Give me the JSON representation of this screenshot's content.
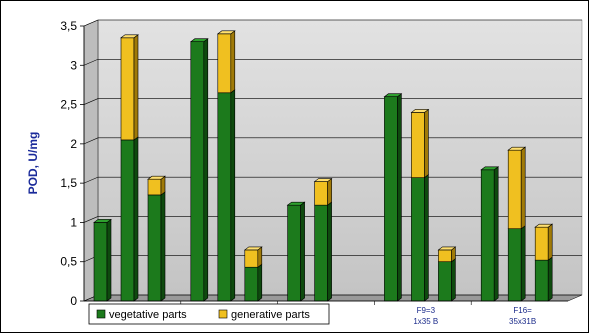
{
  "chart_data": {
    "type": "bar",
    "stacked": true,
    "three_d": true,
    "ylabel": "POD, U/mg",
    "ylim": [
      0,
      3.5
    ],
    "yticks": [
      "0",
      "0,5",
      "1",
      "1,5",
      "2",
      "2,5",
      "3",
      "3,5"
    ],
    "ytick_values": [
      0,
      0.5,
      1,
      1.5,
      2,
      2.5,
      3,
      3.5
    ],
    "grid": true,
    "legend_position": "bottom",
    "groups": [
      {
        "label": "",
        "bars": [
          {
            "vegetative": 1.0,
            "generative": 0
          },
          {
            "vegetative": 2.05,
            "generative": 1.3
          },
          {
            "vegetative": 1.35,
            "generative": 0.2
          }
        ]
      },
      {
        "label": "",
        "bars": [
          {
            "vegetative": 3.3,
            "generative": 0
          },
          {
            "vegetative": 2.65,
            "generative": 0.75
          },
          {
            "vegetative": 0.43,
            "generative": 0.22
          }
        ]
      },
      {
        "label": "",
        "bars": [
          {
            "vegetative": 1.22,
            "generative": 0
          },
          {
            "vegetative": 1.22,
            "generative": 0.3
          }
        ]
      },
      {
        "label": "F9=3\n1x35 B",
        "bars": [
          {
            "vegetative": 2.6,
            "generative": 0
          },
          {
            "vegetative": 1.57,
            "generative": 0.83
          },
          {
            "vegetative": 0.5,
            "generative": 0.15
          }
        ]
      },
      {
        "label": "F16=\n35x31B",
        "bars": [
          {
            "vegetative": 1.67,
            "generative": 0
          },
          {
            "vegetative": 0.92,
            "generative": 1.0
          },
          {
            "vegetative": 0.52,
            "generative": 0.42
          }
        ]
      }
    ],
    "series": [
      {
        "name": "vegetative parts",
        "key": "vegetative",
        "color": "#1c7a1c",
        "color_dark": "#0e4a0e",
        "color_light": "#2ea02e"
      },
      {
        "name": "generative parts",
        "key": "generative",
        "color": "#f0c020",
        "color_dark": "#a07a08",
        "color_light": "#ffe070"
      }
    ]
  },
  "colors": {
    "plot_bg_top": "#dcdcdc",
    "plot_bg_bottom": "#c8c8c8",
    "grid": "#000000",
    "axis_label": "#1a2a9a"
  }
}
